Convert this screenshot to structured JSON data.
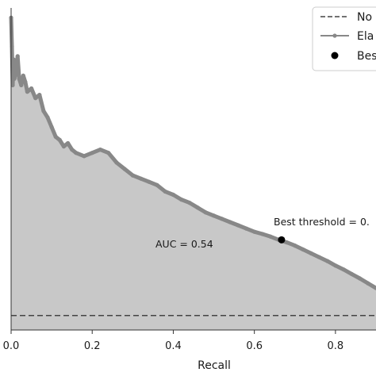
{
  "chart_data": {
    "type": "area",
    "xlabel": "Recall",
    "ylabel": "",
    "xlim": [
      0.0,
      0.9
    ],
    "ylim": [
      0.0,
      1.0
    ],
    "xticks": [
      "0.0",
      "0.2",
      "0.4",
      "0.6",
      "0.8"
    ],
    "grid": false,
    "legend": {
      "placement": "top-right",
      "entries": [
        "No",
        "Ela",
        "Bes"
      ]
    },
    "annotations": {
      "auc": "AUC = 0.54",
      "best_threshold": "Best threshold = 0."
    },
    "colors": {
      "curve": "#888888",
      "fill": "#c8c8c8",
      "baseline": "#444444",
      "best_point": "#000000"
    },
    "series": [
      {
        "kind": "pr_curve",
        "x": [
          0.0,
          0.002,
          0.004,
          0.006,
          0.008,
          0.012,
          0.016,
          0.02,
          0.025,
          0.03,
          0.035,
          0.04,
          0.05,
          0.06,
          0.07,
          0.08,
          0.09,
          0.1,
          0.11,
          0.12,
          0.13,
          0.14,
          0.15,
          0.16,
          0.18,
          0.2,
          0.22,
          0.24,
          0.26,
          0.28,
          0.3,
          0.32,
          0.34,
          0.36,
          0.38,
          0.4,
          0.42,
          0.44,
          0.46,
          0.48,
          0.5,
          0.52,
          0.54,
          0.56,
          0.58,
          0.6,
          0.62,
          0.64,
          0.66,
          0.68,
          0.7,
          0.72,
          0.74,
          0.76,
          0.78,
          0.8,
          0.82,
          0.84,
          0.86,
          0.88,
          0.9
        ],
        "y": [
          0.97,
          0.88,
          0.76,
          0.84,
          0.78,
          0.8,
          0.85,
          0.78,
          0.76,
          0.79,
          0.77,
          0.74,
          0.75,
          0.72,
          0.73,
          0.68,
          0.66,
          0.63,
          0.6,
          0.59,
          0.57,
          0.58,
          0.56,
          0.55,
          0.54,
          0.55,
          0.56,
          0.55,
          0.52,
          0.5,
          0.48,
          0.47,
          0.46,
          0.45,
          0.43,
          0.42,
          0.405,
          0.395,
          0.38,
          0.365,
          0.355,
          0.345,
          0.335,
          0.325,
          0.315,
          0.305,
          0.298,
          0.29,
          0.28,
          0.272,
          0.262,
          0.25,
          0.238,
          0.226,
          0.214,
          0.2,
          0.188,
          0.174,
          0.16,
          0.145,
          0.13
        ]
      },
      {
        "kind": "baseline",
        "y": 0.045
      }
    ],
    "best_point": {
      "x": 0.667,
      "y": 0.28
    }
  }
}
